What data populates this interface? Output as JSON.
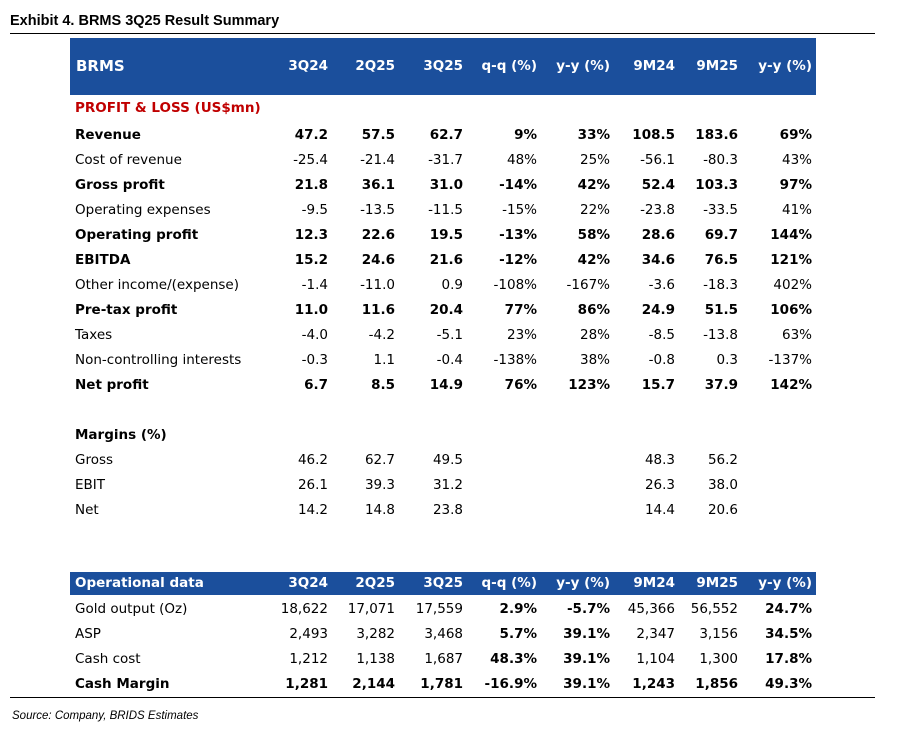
{
  "title": "Exhibit 4. BRMS 3Q25 Result Summary",
  "header": {
    "columns": [
      "BRMS",
      "3Q24",
      "2Q25",
      "3Q25",
      "q-q (%)",
      "y-y (%)",
      "9M24",
      "9M25",
      "y-y (%)"
    ]
  },
  "pl": {
    "section": "PROFIT & LOSS (US$mn)",
    "rows": [
      {
        "label": "Revenue",
        "bold": true,
        "cells": [
          "47.2",
          "57.5",
          "62.7",
          "9%",
          "33%",
          "108.5",
          "183.6",
          "69%"
        ]
      },
      {
        "label": "Cost of revenue",
        "bold": false,
        "cells": [
          "-25.4",
          "-21.4",
          "-31.7",
          "48%",
          "25%",
          "-56.1",
          "-80.3",
          "43%"
        ]
      },
      {
        "label": "Gross profit",
        "bold": true,
        "cells": [
          "21.8",
          "36.1",
          "31.0",
          "-14%",
          "42%",
          "52.4",
          "103.3",
          "97%"
        ]
      },
      {
        "label": "Operating expenses",
        "bold": false,
        "cells": [
          "-9.5",
          "-13.5",
          "-11.5",
          "-15%",
          "22%",
          "-23.8",
          "-33.5",
          "41%"
        ]
      },
      {
        "label": "Operating profit",
        "bold": true,
        "cells": [
          "12.3",
          "22.6",
          "19.5",
          "-13%",
          "58%",
          "28.6",
          "69.7",
          "144%"
        ]
      },
      {
        "label": "EBITDA",
        "bold": true,
        "cells": [
          "15.2",
          "24.6",
          "21.6",
          "-12%",
          "42%",
          "34.6",
          "76.5",
          "121%"
        ]
      },
      {
        "label": "Other income/(expense)",
        "bold": false,
        "cells": [
          "-1.4",
          "-11.0",
          "0.9",
          "-108%",
          "-167%",
          "-3.6",
          "-18.3",
          "402%"
        ]
      },
      {
        "label": "Pre-tax profit",
        "bold": true,
        "cells": [
          "11.0",
          "11.6",
          "20.4",
          "77%",
          "86%",
          "24.9",
          "51.5",
          "106%"
        ]
      },
      {
        "label": "Taxes",
        "bold": false,
        "cells": [
          "-4.0",
          "-4.2",
          "-5.1",
          "23%",
          "28%",
          "-8.5",
          "-13.8",
          "63%"
        ]
      },
      {
        "label": "Non-controlling interests",
        "bold": false,
        "cells": [
          "-0.3",
          "1.1",
          "-0.4",
          "-138%",
          "38%",
          "-0.8",
          "0.3",
          "-137%"
        ]
      },
      {
        "label": "Net profit",
        "bold": true,
        "cells": [
          "6.7",
          "8.5",
          "14.9",
          "76%",
          "123%",
          "15.7",
          "37.9",
          "142%"
        ]
      }
    ]
  },
  "margins": {
    "title": "Margins (%)",
    "rows": [
      {
        "label": "Gross",
        "bold": false,
        "cells": [
          "46.2",
          "62.7",
          "49.5",
          null,
          null,
          "48.3",
          "56.2",
          null
        ]
      },
      {
        "label": "EBIT",
        "bold": false,
        "cells": [
          "26.1",
          "39.3",
          "31.2",
          null,
          null,
          "26.3",
          "38.0",
          null
        ]
      },
      {
        "label": "Net",
        "bold": false,
        "cells": [
          "14.2",
          "14.8",
          "23.8",
          null,
          null,
          "14.4",
          "20.6",
          null
        ]
      }
    ]
  },
  "operational": {
    "columns": [
      "Operational data",
      "3Q24",
      "2Q25",
      "3Q25",
      "q-q (%)",
      "y-y (%)",
      "9M24",
      "9M25",
      "y-y (%)"
    ],
    "rows": [
      {
        "label": "Gold output (Oz)",
        "bold": false,
        "bold_columns": [
          3,
          4,
          7
        ],
        "cells": [
          "18,622",
          "17,071",
          "17,559",
          "2.9%",
          "-5.7%",
          "45,366",
          "56,552",
          "24.7%"
        ]
      },
      {
        "label": "ASP",
        "bold": false,
        "bold_columns": [
          3,
          4,
          7
        ],
        "cells": [
          "2,493",
          "3,282",
          "3,468",
          "5.7%",
          "39.1%",
          "2,347",
          "3,156",
          "34.5%"
        ]
      },
      {
        "label": "Cash cost",
        "bold": false,
        "bold_columns": [
          3,
          4,
          7
        ],
        "cells": [
          "1,212",
          "1,138",
          "1,687",
          "48.3%",
          "39.1%",
          "1,104",
          "1,300",
          "17.8%"
        ]
      },
      {
        "label": "Cash Margin",
        "bold": true,
        "bold_columns": [],
        "cells": [
          "1,281",
          "2,144",
          "1,781",
          "-16.9%",
          "39.1%",
          "1,243",
          "1,856",
          "49.3%"
        ]
      }
    ]
  },
  "source": "Source: Company, BRIDS Estimates"
}
